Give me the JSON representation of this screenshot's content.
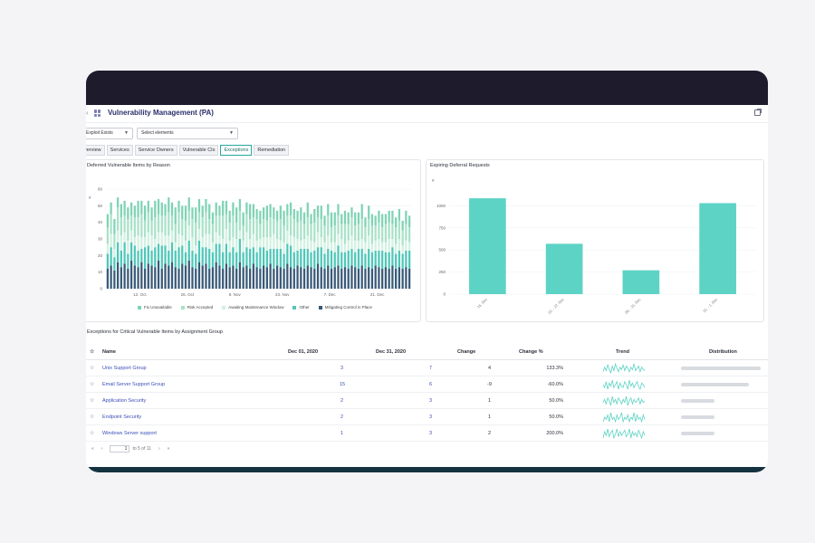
{
  "app": {
    "title": "Vulnerability Management (PA)"
  },
  "icons": {
    "nav": "chevron-left-icon",
    "app": "grid-icon",
    "title_menu": "chevron-down-icon",
    "export": "open-external-icon",
    "star": "star-outline-icon"
  },
  "colors": {
    "topbar": "#1e1b2c",
    "fix_unavailable": "#7fd3b5",
    "risk_accepted": "#a9e2c8",
    "awaiting_maintenance": "#d3f1e2",
    "other": "#4fc7b8",
    "mitigating_control": "#3a5a78",
    "bar_accent": "#5dd3c5",
    "link": "#3a4fb8"
  },
  "filters": [
    {
      "label": "Exploit Exists"
    },
    {
      "label": "Select elements"
    }
  ],
  "tabs": [
    {
      "label": "Overview",
      "visible_label": "verview"
    },
    {
      "label": "Services"
    },
    {
      "label": "Service Owners"
    },
    {
      "label": "Vulnerable CIs"
    },
    {
      "label": "Exceptions",
      "active": true
    },
    {
      "label": "Remediation"
    }
  ],
  "deferred_chart": {
    "title": "Deferred Vulnerable Items by Reason",
    "ylabel": "#"
  },
  "expiring_chart": {
    "title": "Expiring Deferral Requests",
    "ylabel": "#"
  },
  "chart_data": [
    {
      "type": "bar",
      "title": "Deferred Vulnerable Items by Reason",
      "ylabel": "#",
      "ylim": [
        0,
        60
      ],
      "yticks": [
        0,
        10,
        20,
        30,
        40,
        50,
        60
      ],
      "xtick_labels": [
        "12. Oct",
        "26. Oct",
        "9. Nov",
        "23. Nov",
        "7. Dec",
        "21. Dec"
      ],
      "xtick_positions": [
        10,
        24,
        38,
        52,
        66,
        80
      ],
      "stacked": true,
      "series": [
        {
          "name": "Fix Unavailable",
          "color": "#7fd3b5",
          "values": [
            8,
            7,
            9,
            6,
            8,
            9,
            7,
            8,
            7,
            10,
            8,
            9,
            7,
            8,
            10,
            9,
            8,
            7,
            9,
            8,
            10,
            7,
            8,
            9,
            8,
            7,
            9,
            8,
            7,
            8,
            9,
            7,
            8,
            6,
            9,
            8,
            7,
            8,
            9,
            7,
            8,
            7,
            9,
            8,
            6,
            8,
            7,
            9,
            8,
            7,
            6,
            8,
            9,
            7,
            8,
            6,
            7,
            8,
            7,
            9,
            6,
            8,
            7,
            8,
            6,
            7,
            9,
            8,
            7,
            6,
            8,
            7,
            6,
            8,
            7,
            9,
            6,
            8,
            7,
            6,
            7,
            8,
            6,
            7,
            8,
            6,
            7,
            6,
            8,
            7
          ]
        },
        {
          "name": "Risk Accepted",
          "color": "#a9e2c8",
          "values": [
            10,
            12,
            9,
            14,
            11,
            10,
            13,
            9,
            12,
            11,
            14,
            10,
            12,
            9,
            13,
            11,
            10,
            12,
            14,
            9,
            11,
            13,
            10,
            12,
            9,
            11,
            14,
            10,
            12,
            13,
            9,
            11,
            10,
            12,
            14,
            9,
            11,
            13,
            10,
            12,
            9,
            11,
            12,
            10,
            13,
            9,
            11,
            10,
            12,
            9,
            11,
            13,
            10,
            9,
            12,
            11,
            10,
            12,
            9,
            11,
            10,
            12,
            9,
            11,
            10,
            12,
            9,
            10,
            11,
            9,
            12,
            10,
            11,
            9,
            10,
            12,
            9,
            10,
            11,
            9,
            10,
            9,
            11,
            10,
            9,
            10,
            11,
            9,
            10,
            9
          ]
        },
        {
          "name": "Awaiting Maintenance Window",
          "color": "#d3f1e2",
          "values": [
            6,
            8,
            5,
            7,
            9,
            6,
            8,
            7,
            5,
            9,
            7,
            6,
            8,
            9,
            5,
            7,
            8,
            6,
            9,
            7,
            5,
            8,
            6,
            7,
            9,
            8,
            5,
            7,
            6,
            8,
            9,
            6,
            7,
            5,
            8,
            9,
            7,
            6,
            8,
            5,
            7,
            9,
            6,
            8,
            7,
            5,
            6,
            8,
            7,
            9,
            6,
            5,
            7,
            8,
            6,
            9,
            7,
            5,
            6,
            8,
            7,
            5,
            9,
            6,
            7,
            8,
            5,
            6,
            7,
            8,
            5,
            6,
            8,
            7,
            5,
            6,
            7,
            8,
            5,
            6,
            7,
            5,
            6,
            8,
            5,
            6,
            7,
            5,
            6,
            5
          ]
        },
        {
          "name": "Other",
          "color": "#4fc7b8",
          "values": [
            9,
            11,
            8,
            12,
            10,
            13,
            9,
            11,
            12,
            10,
            8,
            13,
            11,
            9,
            12,
            10,
            14,
            11,
            9,
            12,
            10,
            13,
            11,
            8,
            12,
            10,
            9,
            13,
            11,
            10,
            12,
            9,
            11,
            13,
            10,
            12,
            9,
            11,
            10,
            14,
            9,
            11,
            12,
            10,
            9,
            13,
            11,
            10,
            9,
            12,
            10,
            11,
            9,
            12,
            13,
            10,
            9,
            11,
            12,
            10,
            9,
            11,
            10,
            12,
            9,
            10,
            11,
            9,
            12,
            10,
            9,
            11,
            10,
            9,
            12,
            10,
            9,
            11,
            10,
            9,
            10,
            11,
            9,
            10,
            11,
            9,
            10,
            9,
            10,
            11
          ]
        },
        {
          "name": "Mitigating Control in Place",
          "color": "#3a5a78",
          "values": [
            12,
            14,
            11,
            16,
            13,
            15,
            12,
            17,
            14,
            13,
            16,
            12,
            15,
            14,
            13,
            17,
            12,
            15,
            14,
            16,
            13,
            12,
            15,
            14,
            17,
            13,
            12,
            16,
            14,
            15,
            12,
            13,
            16,
            14,
            12,
            15,
            13,
            14,
            12,
            16,
            13,
            14,
            12,
            15,
            13,
            12,
            14,
            13,
            15,
            12,
            14,
            13,
            12,
            15,
            13,
            12,
            14,
            13,
            12,
            14,
            13,
            12,
            15,
            13,
            12,
            14,
            12,
            13,
            14,
            12,
            13,
            12,
            14,
            13,
            12,
            14,
            12,
            13,
            12,
            14,
            13,
            12,
            13,
            12,
            14,
            12,
            13,
            12,
            13,
            12
          ]
        }
      ],
      "legend": "bottom"
    },
    {
      "type": "bar",
      "title": "Expiring Deferral Requests",
      "ylabel": "#",
      "categories": [
        "15. Dec",
        "22. - 27. Dec",
        "28. - 31. Dec",
        "31. - 1. Dec"
      ],
      "values": [
        1085,
        570,
        270,
        1030
      ],
      "ylim": [
        0,
        1250
      ],
      "yticks": [
        0,
        250,
        500,
        750,
        1000
      ],
      "color": "#5dd3c5"
    }
  ],
  "table": {
    "title": "Exceptions for Critical Vulnerable Items by Assignment Group",
    "headers": {
      "name": "Name",
      "dec01": "Dec 01, 2020",
      "dec31": "Dec 31, 2020",
      "change": "Change",
      "change_pct": "Change %",
      "trend": "Trend",
      "distribution": "Distribution"
    },
    "rows": [
      {
        "name": "Unix Support Group",
        "dec01": "3",
        "dec31": "7",
        "change": "4",
        "change_pct": "133.3%",
        "distribution": 1.0,
        "trend": [
          5,
          9,
          6,
          11,
          7,
          4,
          10,
          6,
          12,
          8,
          5,
          9,
          7,
          11,
          6,
          10,
          8,
          5,
          9,
          7,
          12,
          6,
          8,
          10,
          5,
          9,
          7,
          6
        ]
      },
      {
        "name": "Email Server Support Group",
        "dec01": "15",
        "dec31": "6",
        "change": "-9",
        "change_pct": "-60.0%",
        "distribution": 0.85,
        "trend": [
          8,
          6,
          10,
          5,
          9,
          7,
          11,
          6,
          8,
          10,
          5,
          9,
          7,
          6,
          10,
          8,
          5,
          11,
          7,
          9,
          6,
          8,
          10,
          7,
          5,
          9,
          8,
          6
        ]
      },
      {
        "name": "Application Security",
        "dec01": "2",
        "dec31": "3",
        "change": "1",
        "change_pct": "50.0%",
        "distribution": 0.42,
        "trend": [
          7,
          9,
          6,
          10,
          8,
          5,
          11,
          7,
          9,
          6,
          10,
          8,
          6,
          9,
          7,
          11,
          5,
          8,
          10,
          6,
          9,
          7,
          8,
          10,
          6,
          9,
          7,
          8
        ]
      },
      {
        "name": "Endpoint Security",
        "dec01": "2",
        "dec31": "3",
        "change": "1",
        "change_pct": "50.0%",
        "distribution": 0.42,
        "trend": [
          6,
          8,
          7,
          9,
          6,
          10,
          7,
          8,
          6,
          9,
          7,
          8,
          10,
          6,
          8,
          7,
          9,
          6,
          8,
          7,
          10,
          6,
          9,
          7,
          8,
          6,
          9,
          7
        ]
      },
      {
        "name": "Windows Server support",
        "dec01": "1",
        "dec31": "3",
        "change": "2",
        "change_pct": "200.0%",
        "distribution": 0.42,
        "trend": [
          5,
          10,
          7,
          12,
          6,
          9,
          11,
          5,
          8,
          12,
          6,
          10,
          7,
          9,
          11,
          6,
          8,
          12,
          5,
          10,
          7,
          9,
          6,
          11,
          8,
          5,
          10,
          7
        ]
      }
    ]
  },
  "pagination": {
    "page": "1",
    "range_text": "to 5 of 11",
    "first": "«",
    "prev": "‹",
    "next": "›",
    "last": "»"
  }
}
